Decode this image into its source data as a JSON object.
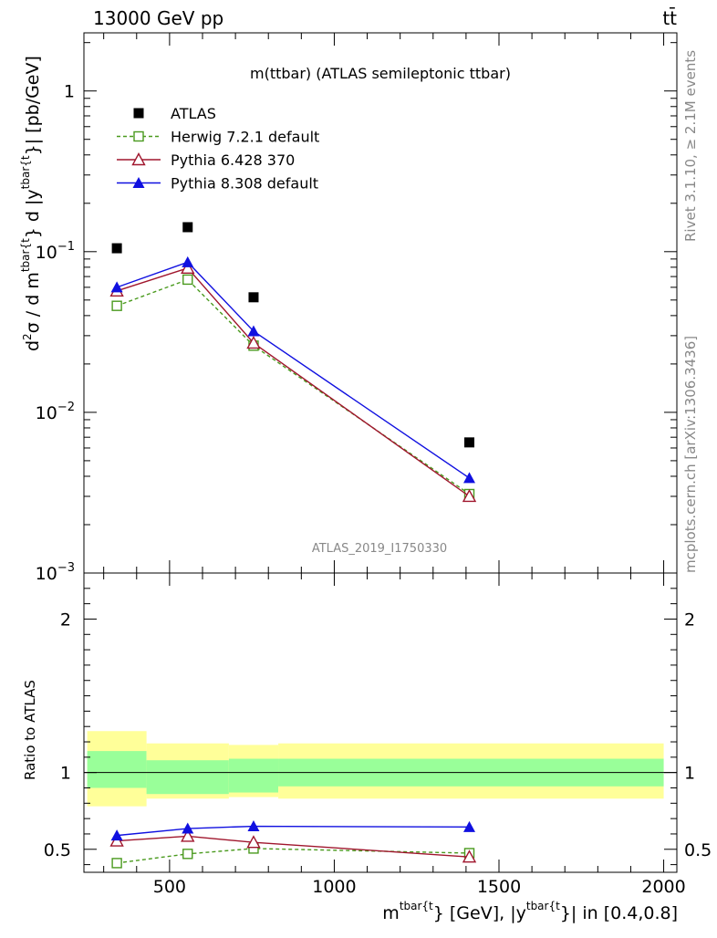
{
  "header": {
    "left_label": "13000 GeV pp",
    "right_label": "tt̄"
  },
  "side_texts": {
    "rivet": "Rivet 3.1.10, ≥ 2.1M events",
    "mcplots": "mcplots.cern.ch [arXiv:1306.3436]"
  },
  "watermark": "ATLAS_2019_I1750330",
  "chart_data": [
    {
      "type": "scatter",
      "panel": "main",
      "title": "m(ttbar) (ATLAS semileptonic ttbar)",
      "yscale": "log",
      "ylim": [
        0.001,
        2.3
      ],
      "xlim": [
        240,
        2040
      ],
      "ylabel_parts": [
        "d",
        "2",
        "σ / d m",
        "tbar{t",
        "} d |y",
        "tbar{t",
        "}| [pb/GeV]"
      ],
      "ytick_labels": [
        {
          "base": "10",
          "exp": "−3",
          "value": 0.001
        },
        {
          "base": "10",
          "exp": "−2",
          "value": 0.01
        },
        {
          "base": "10",
          "exp": "−1",
          "value": 0.1
        },
        {
          "base": "1",
          "exp": "",
          "value": 1
        }
      ],
      "legend_position": "top-left",
      "series": [
        {
          "name": "ATLAS",
          "style": "data",
          "color": "#000000",
          "marker": "square-filled",
          "x": [
            340,
            555,
            755,
            1410
          ],
          "y": [
            0.105,
            0.142,
            0.052,
            0.0065
          ]
        },
        {
          "name": "Herwig 7.2.1 default",
          "style": "mc",
          "color": "#4a9a1e",
          "marker": "square-open",
          "dash": true,
          "x": [
            340,
            555,
            755,
            1410
          ],
          "y": [
            0.046,
            0.067,
            0.026,
            0.0031
          ]
        },
        {
          "name": "Pythia 6.428 370",
          "style": "mc",
          "color": "#a0162d",
          "marker": "triangle-open",
          "dash": false,
          "x": [
            340,
            555,
            755,
            1410
          ],
          "y": [
            0.057,
            0.079,
            0.027,
            0.003
          ]
        },
        {
          "name": "Pythia 8.308 default",
          "style": "mc",
          "color": "#1010e0",
          "marker": "triangle-filled",
          "dash": false,
          "x": [
            340,
            555,
            755,
            1410
          ],
          "y": [
            0.06,
            0.086,
            0.032,
            0.0039
          ]
        }
      ]
    },
    {
      "type": "line",
      "panel": "ratio",
      "ylabel": "Ratio to ATLAS",
      "ylim": [
        0.35,
        2.3
      ],
      "xlim": [
        240,
        2040
      ],
      "ytick_labels": [
        "0.5",
        "1",
        "2"
      ],
      "xtick_labels": [
        "500",
        "1000",
        "1500",
        "2000"
      ],
      "xlabel_parts": [
        "m",
        "tbar{t",
        "} [GeV], |y",
        "tbar{t",
        "}| in [0.4,0.8]"
      ],
      "bands": [
        {
          "x0": 250,
          "x1": 430,
          "green": [
            0.9,
            1.14
          ],
          "yellow": [
            0.78,
            1.27
          ]
        },
        {
          "x0": 430,
          "x1": 680,
          "green": [
            0.86,
            1.08
          ],
          "yellow": [
            0.83,
            1.19
          ]
        },
        {
          "x0": 680,
          "x1": 830,
          "green": [
            0.87,
            1.09
          ],
          "yellow": [
            0.84,
            1.18
          ]
        },
        {
          "x0": 830,
          "x1": 2000,
          "green": [
            0.91,
            1.09
          ],
          "yellow": [
            0.83,
            1.19
          ]
        }
      ],
      "band_colors": {
        "green": "#99ff99",
        "yellow": "#ffff99"
      },
      "series": [
        {
          "name": "Herwig 7.2.1 default",
          "color": "#4a9a1e",
          "marker": "square-open",
          "dash": true,
          "x": [
            340,
            555,
            755,
            1410
          ],
          "y": [
            0.41,
            0.47,
            0.505,
            0.475
          ]
        },
        {
          "name": "Pythia 6.428 370",
          "color": "#a0162d",
          "marker": "triangle-open",
          "dash": false,
          "x": [
            340,
            555,
            755,
            1410
          ],
          "y": [
            0.555,
            0.585,
            0.545,
            0.45
          ]
        },
        {
          "name": "Pythia 8.308 default",
          "color": "#1010e0",
          "marker": "triangle-filled",
          "dash": false,
          "x": [
            340,
            555,
            755,
            1410
          ],
          "y": [
            0.59,
            0.635,
            0.65,
            0.645
          ]
        }
      ]
    }
  ]
}
